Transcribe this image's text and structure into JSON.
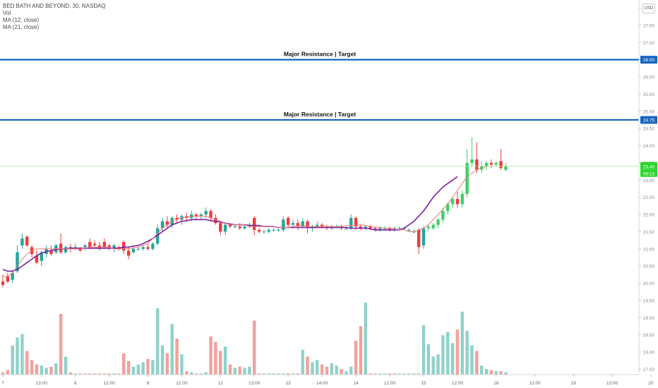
{
  "legend": {
    "symbol": "BED BATH AND BEYOND, 30, NASDAQ",
    "vol": "Vol",
    "ma12": "MA (12, close)",
    "ma21": "MA (21, close)"
  },
  "currency": "USD",
  "colors": {
    "up": "#26a69a",
    "up_bright": "#3ad166",
    "down": "#ef3b3b",
    "vol_up": "#8fd2c9",
    "vol_down": "#f2a09c",
    "ma12": "#f07a7a",
    "ma21": "#7b1fa2",
    "resistance": "#1565c0",
    "price_tag": "#2bd62b",
    "axis_text": "#888888"
  },
  "annotations": [
    {
      "text": "Major Resistance | Target",
      "price": 26.5,
      "tag": "26.50"
    },
    {
      "text": "Major Resistance | Target",
      "price": 24.75,
      "tag": "24.75"
    }
  ],
  "current": {
    "price": 23.4,
    "price_label": "23.40",
    "countdown": "09:13"
  },
  "chart_data": {
    "type": "candlestick",
    "title": "BED BATH AND BEYOND, 30, NASDAQ",
    "ylim": [
      17.5,
      28.5
    ],
    "y_ticks": [
      "28.00",
      "27.50",
      "27.00",
      "26.50",
      "26.00",
      "25.50",
      "25.00",
      "24.50",
      "24.00",
      "23.50",
      "23.00",
      "22.50",
      "22.00",
      "21.50",
      "21.00",
      "20.50",
      "20.00",
      "19.50",
      "19.00",
      "18.50",
      "18.00",
      "17.50"
    ],
    "x_ticks": [
      "7",
      "13:00",
      "8",
      "12:00",
      "9",
      "12:00",
      "12",
      "13:00",
      "13",
      "14:00",
      "14",
      "12:00",
      "15",
      "12:00",
      "16",
      "12:00",
      "19",
      "12:00",
      "20"
    ],
    "x_tick_slots": [
      0,
      8,
      15,
      22,
      30,
      37,
      45,
      52,
      59,
      66,
      73,
      80,
      87,
      94,
      102,
      110,
      118,
      126,
      134
    ],
    "bars": [
      {
        "o": 20.05,
        "h": 20.25,
        "l": 19.88,
        "c": 19.95,
        "v": 200
      },
      {
        "o": 20.2,
        "h": 20.3,
        "l": 20.0,
        "c": 20.05,
        "v": 400
      },
      {
        "o": 20.1,
        "h": 20.4,
        "l": 20.0,
        "c": 20.3,
        "v": 2600
      },
      {
        "o": 20.35,
        "h": 21.1,
        "l": 20.3,
        "c": 20.9,
        "v": 3300
      },
      {
        "o": 21.1,
        "h": 21.45,
        "l": 21.0,
        "c": 21.3,
        "v": 3600
      },
      {
        "o": 21.35,
        "h": 21.4,
        "l": 21.05,
        "c": 21.1,
        "v": 2100
      },
      {
        "o": 21.05,
        "h": 21.1,
        "l": 20.75,
        "c": 20.85,
        "v": 1300
      },
      {
        "o": 20.8,
        "h": 20.95,
        "l": 20.55,
        "c": 20.6,
        "v": 900
      },
      {
        "o": 20.65,
        "h": 20.95,
        "l": 20.5,
        "c": 20.9,
        "v": 800
      },
      {
        "o": 20.85,
        "h": 21.1,
        "l": 20.75,
        "c": 21.0,
        "v": 600
      },
      {
        "o": 20.95,
        "h": 21.1,
        "l": 20.8,
        "c": 20.85,
        "v": 700
      },
      {
        "o": 20.9,
        "h": 21.15,
        "l": 20.85,
        "c": 21.1,
        "v": 1000
      },
      {
        "o": 21.15,
        "h": 21.45,
        "l": 20.85,
        "c": 20.9,
        "v": 5400
      },
      {
        "o": 20.9,
        "h": 21.1,
        "l": 20.85,
        "c": 21.05,
        "v": 1600
      },
      {
        "o": 21.05,
        "h": 21.15,
        "l": 20.9,
        "c": 21.0,
        "v": 200
      },
      {
        "o": 21.05,
        "h": 21.15,
        "l": 20.95,
        "c": 21.05,
        "v": 100
      },
      {
        "o": 21.0,
        "h": 21.05,
        "l": 20.9,
        "c": 20.95,
        "v": 100
      },
      {
        "o": 21.05,
        "h": 21.15,
        "l": 20.95,
        "c": 21.1,
        "v": 100
      },
      {
        "o": 21.2,
        "h": 21.3,
        "l": 21.0,
        "c": 21.05,
        "v": 100
      },
      {
        "o": 21.15,
        "h": 21.25,
        "l": 21.05,
        "c": 21.1,
        "v": 100
      },
      {
        "o": 21.1,
        "h": 21.2,
        "l": 20.95,
        "c": 21.0,
        "v": 100
      },
      {
        "o": 21.2,
        "h": 21.3,
        "l": 21.0,
        "c": 21.05,
        "v": 100
      },
      {
        "o": 21.1,
        "h": 21.15,
        "l": 20.95,
        "c": 21.05,
        "v": 100
      },
      {
        "o": 21.0,
        "h": 21.15,
        "l": 20.9,
        "c": 21.1,
        "v": 100
      },
      {
        "o": 21.05,
        "h": 21.1,
        "l": 20.95,
        "c": 21.0,
        "v": 100
      },
      {
        "o": 21.2,
        "h": 21.25,
        "l": 20.85,
        "c": 20.95,
        "v": 1900
      },
      {
        "o": 20.95,
        "h": 21.05,
        "l": 20.7,
        "c": 20.8,
        "v": 1200
      },
      {
        "o": 20.9,
        "h": 21.1,
        "l": 20.85,
        "c": 21.0,
        "v": 700
      },
      {
        "o": 21.0,
        "h": 21.05,
        "l": 20.95,
        "c": 21.0,
        "v": 900
      },
      {
        "o": 21.0,
        "h": 21.1,
        "l": 20.95,
        "c": 21.05,
        "v": 1100
      },
      {
        "o": 21.05,
        "h": 21.15,
        "l": 20.95,
        "c": 21.0,
        "v": 1400
      },
      {
        "o": 21.0,
        "h": 21.2,
        "l": 20.95,
        "c": 21.15,
        "v": 1300
      },
      {
        "o": 21.15,
        "h": 21.7,
        "l": 21.1,
        "c": 21.6,
        "v": 5900
      },
      {
        "o": 21.6,
        "h": 21.9,
        "l": 21.5,
        "c": 21.8,
        "v": 2600
      },
      {
        "o": 21.8,
        "h": 21.95,
        "l": 21.6,
        "c": 21.7,
        "v": 1900
      },
      {
        "o": 21.7,
        "h": 21.95,
        "l": 21.6,
        "c": 21.9,
        "v": 4500
      },
      {
        "o": 21.9,
        "h": 22.0,
        "l": 21.75,
        "c": 21.85,
        "v": 3200
      },
      {
        "o": 21.85,
        "h": 22.0,
        "l": 21.7,
        "c": 21.95,
        "v": 1800
      },
      {
        "o": 21.95,
        "h": 22.05,
        "l": 21.8,
        "c": 21.9,
        "v": 300
      },
      {
        "o": 21.9,
        "h": 22.1,
        "l": 21.8,
        "c": 22.0,
        "v": 200
      },
      {
        "o": 22.0,
        "h": 22.05,
        "l": 21.85,
        "c": 21.95,
        "v": 100
      },
      {
        "o": 21.95,
        "h": 22.05,
        "l": 21.85,
        "c": 22.0,
        "v": 100
      },
      {
        "o": 22.0,
        "h": 22.2,
        "l": 21.9,
        "c": 22.1,
        "v": 200
      },
      {
        "o": 22.1,
        "h": 22.15,
        "l": 21.8,
        "c": 21.9,
        "v": 3400
      },
      {
        "o": 21.9,
        "h": 22.0,
        "l": 21.7,
        "c": 21.75,
        "v": 2900
      },
      {
        "o": 21.75,
        "h": 21.8,
        "l": 21.4,
        "c": 21.5,
        "v": 2100
      },
      {
        "o": 21.5,
        "h": 21.75,
        "l": 21.4,
        "c": 21.7,
        "v": 2500
      },
      {
        "o": 21.7,
        "h": 21.75,
        "l": 21.6,
        "c": 21.65,
        "v": 900
      },
      {
        "o": 21.65,
        "h": 21.7,
        "l": 21.6,
        "c": 21.65,
        "v": 600
      },
      {
        "o": 21.65,
        "h": 21.75,
        "l": 21.55,
        "c": 21.6,
        "v": 700
      },
      {
        "o": 21.6,
        "h": 21.7,
        "l": 21.55,
        "c": 21.65,
        "v": 600
      },
      {
        "o": 21.65,
        "h": 21.75,
        "l": 21.6,
        "c": 21.7,
        "v": 700
      },
      {
        "o": 21.9,
        "h": 21.95,
        "l": 21.4,
        "c": 21.55,
        "v": 4800
      },
      {
        "o": 21.55,
        "h": 21.6,
        "l": 21.45,
        "c": 21.5,
        "v": 100
      },
      {
        "o": 21.5,
        "h": 21.55,
        "l": 21.45,
        "c": 21.5,
        "v": 100
      },
      {
        "o": 21.5,
        "h": 21.6,
        "l": 21.45,
        "c": 21.55,
        "v": 100
      },
      {
        "o": 21.55,
        "h": 21.6,
        "l": 21.5,
        "c": 21.55,
        "v": 100
      },
      {
        "o": 21.55,
        "h": 21.6,
        "l": 21.5,
        "c": 21.55,
        "v": 100
      },
      {
        "o": 21.55,
        "h": 21.95,
        "l": 21.5,
        "c": 21.85,
        "v": 100
      },
      {
        "o": 21.9,
        "h": 21.95,
        "l": 21.6,
        "c": 21.7,
        "v": 100
      },
      {
        "o": 21.7,
        "h": 21.85,
        "l": 21.65,
        "c": 21.75,
        "v": 100
      },
      {
        "o": 21.75,
        "h": 21.85,
        "l": 21.55,
        "c": 21.65,
        "v": 100
      },
      {
        "o": 21.65,
        "h": 21.9,
        "l": 21.6,
        "c": 21.8,
        "v": 2200
      },
      {
        "o": 21.8,
        "h": 21.85,
        "l": 21.45,
        "c": 21.6,
        "v": 1600
      },
      {
        "o": 21.6,
        "h": 21.7,
        "l": 21.5,
        "c": 21.65,
        "v": 1100
      },
      {
        "o": 21.65,
        "h": 21.8,
        "l": 21.6,
        "c": 21.7,
        "v": 1300
      },
      {
        "o": 21.7,
        "h": 21.75,
        "l": 21.6,
        "c": 21.65,
        "v": 900
      },
      {
        "o": 21.65,
        "h": 21.7,
        "l": 21.55,
        "c": 21.6,
        "v": 700
      },
      {
        "o": 21.6,
        "h": 21.7,
        "l": 21.55,
        "c": 21.65,
        "v": 1000
      },
      {
        "o": 21.65,
        "h": 21.7,
        "l": 21.6,
        "c": 21.65,
        "v": 800
      },
      {
        "o": 21.65,
        "h": 21.7,
        "l": 21.55,
        "c": 21.6,
        "v": 500
      },
      {
        "o": 21.6,
        "h": 21.65,
        "l": 21.55,
        "c": 21.6,
        "v": 300
      },
      {
        "o": 21.6,
        "h": 22.0,
        "l": 21.55,
        "c": 21.9,
        "v": 700
      },
      {
        "o": 21.9,
        "h": 21.95,
        "l": 21.55,
        "c": 21.65,
        "v": 3000
      },
      {
        "o": 21.65,
        "h": 21.7,
        "l": 21.55,
        "c": 21.6,
        "v": 4300
      },
      {
        "o": 21.6,
        "h": 21.7,
        "l": 21.55,
        "c": 21.65,
        "v": 6400
      },
      {
        "o": 21.65,
        "h": 21.7,
        "l": 21.55,
        "c": 21.6,
        "v": 100
      },
      {
        "o": 21.6,
        "h": 21.65,
        "l": 21.5,
        "c": 21.55,
        "v": 100
      },
      {
        "o": 21.55,
        "h": 21.65,
        "l": 21.5,
        "c": 21.6,
        "v": 100
      },
      {
        "o": 21.6,
        "h": 21.65,
        "l": 21.55,
        "c": 21.6,
        "v": 100
      },
      {
        "o": 21.6,
        "h": 21.65,
        "l": 21.5,
        "c": 21.55,
        "v": 100
      },
      {
        "o": 21.55,
        "h": 21.65,
        "l": 21.5,
        "c": 21.6,
        "v": 100
      },
      {
        "o": 21.6,
        "h": 21.65,
        "l": 21.55,
        "c": 21.6,
        "v": 100
      },
      {
        "o": 21.6,
        "h": 21.65,
        "l": 21.55,
        "c": 21.6,
        "v": 100
      },
      {
        "o": 21.55,
        "h": 21.6,
        "l": 21.5,
        "c": 21.55,
        "v": 100
      },
      {
        "o": 21.5,
        "h": 21.55,
        "l": 21.45,
        "c": 21.5,
        "v": 100
      },
      {
        "o": 21.55,
        "h": 21.6,
        "l": 20.85,
        "c": 21.05,
        "v": 100
      },
      {
        "o": 21.1,
        "h": 21.65,
        "l": 21.0,
        "c": 21.6,
        "v": 4400
      },
      {
        "o": 21.6,
        "h": 21.7,
        "l": 21.5,
        "c": 21.65,
        "v": 2700
      },
      {
        "o": 21.6,
        "h": 21.75,
        "l": 21.55,
        "c": 21.7,
        "v": 1600
      },
      {
        "o": 21.7,
        "h": 21.9,
        "l": 21.6,
        "c": 21.85,
        "v": 1800
      },
      {
        "o": 21.85,
        "h": 22.2,
        "l": 21.75,
        "c": 22.1,
        "v": 3500
      },
      {
        "o": 22.1,
        "h": 22.35,
        "l": 22.0,
        "c": 22.3,
        "v": 3800
      },
      {
        "o": 22.3,
        "h": 22.5,
        "l": 22.2,
        "c": 22.45,
        "v": 2800
      },
      {
        "o": 22.45,
        "h": 22.65,
        "l": 22.2,
        "c": 22.3,
        "v": 4000
      },
      {
        "o": 22.3,
        "h": 22.7,
        "l": 22.2,
        "c": 22.6,
        "v": 5600
      },
      {
        "o": 22.6,
        "h": 23.9,
        "l": 22.5,
        "c": 23.5,
        "v": 3900
      },
      {
        "o": 23.5,
        "h": 24.25,
        "l": 23.4,
        "c": 23.6,
        "v": 2600
      },
      {
        "o": 23.6,
        "h": 24.1,
        "l": 23.2,
        "c": 23.3,
        "v": 2100
      },
      {
        "o": 23.3,
        "h": 23.55,
        "l": 23.2,
        "c": 23.4,
        "v": 800
      },
      {
        "o": 23.4,
        "h": 23.55,
        "l": 23.3,
        "c": 23.5,
        "v": 500
      },
      {
        "o": 23.5,
        "h": 23.6,
        "l": 23.35,
        "c": 23.45,
        "v": 400
      },
      {
        "o": 23.45,
        "h": 23.55,
        "l": 23.4,
        "c": 23.5,
        "v": 300
      },
      {
        "o": 23.55,
        "h": 23.9,
        "l": 23.3,
        "c": 23.35,
        "v": 300
      },
      {
        "o": 23.3,
        "h": 23.5,
        "l": 23.25,
        "c": 23.4,
        "v": 200
      }
    ],
    "ma12_series": [
      20.2,
      20.2,
      20.3,
      20.5,
      20.7,
      20.85,
      20.95,
      21.0,
      21.0,
      21.0,
      21.0,
      21.0,
      21.0,
      21.0,
      21.0,
      21.0,
      21.0,
      21.02,
      21.05,
      21.05,
      21.05,
      21.05,
      21.05,
      21.0,
      21.0,
      21.0,
      21.0,
      21.02,
      21.05,
      21.1,
      21.15,
      21.3,
      21.45,
      21.6,
      21.7,
      21.8,
      21.85,
      21.9,
      21.92,
      21.95,
      21.95,
      21.95,
      21.95,
      21.9,
      21.85,
      21.8,
      21.75,
      21.7,
      21.7,
      21.7,
      21.7,
      21.65,
      21.65,
      21.65,
      21.65,
      21.65,
      21.65,
      21.62,
      21.62,
      21.62,
      21.65,
      21.68,
      21.68,
      21.65,
      21.65,
      21.65,
      21.65,
      21.65,
      21.65,
      21.65,
      21.65,
      21.68,
      21.68,
      21.68,
      21.7,
      21.68,
      21.65,
      21.63,
      21.62,
      21.6,
      21.6,
      21.58,
      21.55,
      21.55,
      21.5,
      21.5,
      21.55,
      21.6,
      21.7,
      21.85,
      22.0,
      22.15,
      22.3,
      22.5,
      22.7,
      22.9,
      23.1,
      23.2,
      23.3,
      23.35,
      23.4
    ],
    "ma21_series": [
      20.4,
      20.35,
      20.35,
      20.4,
      20.5,
      20.6,
      20.7,
      20.8,
      20.88,
      20.92,
      20.95,
      20.98,
      21.0,
      21.0,
      21.02,
      21.02,
      21.02,
      21.02,
      21.02,
      21.02,
      21.02,
      21.02,
      21.02,
      21.02,
      21.02,
      21.05,
      21.05,
      21.08,
      21.1,
      21.15,
      21.22,
      21.3,
      21.4,
      21.5,
      21.6,
      21.7,
      21.75,
      21.8,
      21.82,
      21.85,
      21.85,
      21.85,
      21.85,
      21.82,
      21.8,
      21.78,
      21.75,
      21.72,
      21.7,
      21.7,
      21.7,
      21.68,
      21.68,
      21.68,
      21.65,
      21.65,
      21.65,
      21.62,
      21.62,
      21.62,
      21.62,
      21.62,
      21.62,
      21.62,
      21.62,
      21.62,
      21.62,
      21.62,
      21.62,
      21.62,
      21.62,
      21.62,
      21.6,
      21.6,
      21.6,
      21.6,
      21.58,
      21.55,
      21.55,
      21.55,
      21.55,
      21.55,
      21.55,
      21.6,
      21.7,
      21.8,
      21.95,
      22.1,
      22.3,
      22.5,
      22.65,
      22.8,
      22.9,
      23.0,
      23.1
    ]
  }
}
